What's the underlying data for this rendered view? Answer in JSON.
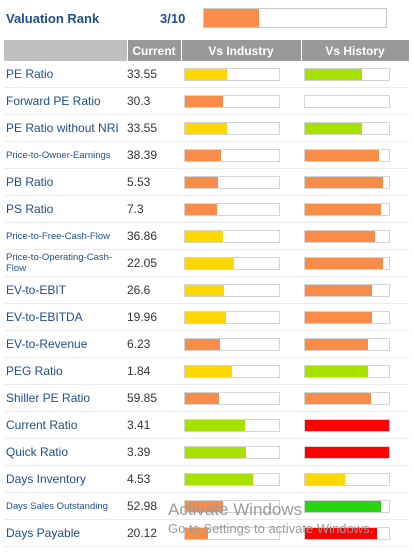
{
  "rank": {
    "label": "Valuation Rank",
    "score": "3/10",
    "fraction": 0.3,
    "color": "#fa8c4a"
  },
  "table": {
    "headers": [
      "",
      "Current",
      "Vs Industry",
      "Vs History"
    ],
    "rows": [
      {
        "metric": "PE Ratio",
        "value": "33.55",
        "industry": {
          "level": 0.45,
          "color": "#ffd700"
        },
        "history": {
          "level": 0.68,
          "color": "#a6e100"
        }
      },
      {
        "metric": "Forward PE Ratio",
        "value": "30.3",
        "industry": {
          "level": 0.4,
          "color": "#fa8c4a"
        },
        "history": {
          "level": 0,
          "color": "#ffffff"
        }
      },
      {
        "metric": "PE Ratio without NRI",
        "value": "33.55",
        "industry": {
          "level": 0.45,
          "color": "#ffd700"
        },
        "history": {
          "level": 0.68,
          "color": "#a6e100"
        }
      },
      {
        "metric": "Price-to-Owner-Earnings",
        "value": "38.39",
        "industry": {
          "level": 0.38,
          "color": "#fa8c4a"
        },
        "history": {
          "level": 0.88,
          "color": "#fa8c4a"
        }
      },
      {
        "metric": "PB Ratio",
        "value": "5.53",
        "industry": {
          "level": 0.35,
          "color": "#fa8c4a"
        },
        "history": {
          "level": 0.93,
          "color": "#fa8c4a"
        }
      },
      {
        "metric": "PS Ratio",
        "value": "7.3",
        "industry": {
          "level": 0.34,
          "color": "#fa8c4a"
        },
        "history": {
          "level": 0.9,
          "color": "#fa8c4a"
        }
      },
      {
        "metric": "Price-to-Free-Cash-Flow",
        "value": "36.86",
        "industry": {
          "level": 0.4,
          "color": "#ffd700"
        },
        "history": {
          "level": 0.83,
          "color": "#fa8c4a"
        }
      },
      {
        "metric": "Price-to-Operating-Cash-Flow",
        "value": "22.05",
        "industry": {
          "level": 0.52,
          "color": "#ffd700"
        },
        "history": {
          "level": 0.93,
          "color": "#fa8c4a"
        }
      },
      {
        "metric": "EV-to-EBIT",
        "value": "26.6",
        "industry": {
          "level": 0.42,
          "color": "#ffd700"
        },
        "history": {
          "level": 0.8,
          "color": "#fa8c4a"
        }
      },
      {
        "metric": "EV-to-EBITDA",
        "value": "19.96",
        "industry": {
          "level": 0.44,
          "color": "#ffd700"
        },
        "history": {
          "level": 0.8,
          "color": "#fa8c4a"
        }
      },
      {
        "metric": "EV-to-Revenue",
        "value": "6.23",
        "industry": {
          "level": 0.37,
          "color": "#fa8c4a"
        },
        "history": {
          "level": 0.75,
          "color": "#fa8c4a"
        }
      },
      {
        "metric": "PEG Ratio",
        "value": "1.84",
        "industry": {
          "level": 0.5,
          "color": "#ffd700"
        },
        "history": {
          "level": 0.75,
          "color": "#a6e100"
        }
      },
      {
        "metric": "Shiller PE Ratio",
        "value": "59.85",
        "industry": {
          "level": 0.36,
          "color": "#fa8c4a"
        },
        "history": {
          "level": 0.79,
          "color": "#fa8c4a"
        }
      },
      {
        "metric": "Current Ratio",
        "value": "3.41",
        "industry": {
          "level": 0.64,
          "color": "#a6e100"
        },
        "history": {
          "level": 1.0,
          "color": "#ff0000"
        }
      },
      {
        "metric": "Quick Ratio",
        "value": "3.39",
        "industry": {
          "level": 0.65,
          "color": "#a6e100"
        },
        "history": {
          "level": 1.0,
          "color": "#ff0000"
        }
      },
      {
        "metric": "Days Inventory",
        "value": "4.53",
        "industry": {
          "level": 0.72,
          "color": "#a6e100"
        },
        "history": {
          "level": 0.48,
          "color": "#ffd700"
        }
      },
      {
        "metric": "Days Sales Outstanding",
        "value": "52.98",
        "industry": {
          "level": 0.4,
          "color": "#fa8c4a"
        },
        "history": {
          "level": 0.9,
          "color": "#26d60f"
        }
      },
      {
        "metric": "Days Payable",
        "value": "20.12",
        "industry": {
          "level": 0.24,
          "color": "#fa8c4a"
        },
        "history": {
          "level": 0.86,
          "color": "#ff0000"
        }
      }
    ],
    "small_labels": [
      "Price-to-Owner-Earnings",
      "Price-to-Free-Cash-Flow",
      "Price-to-Operating-Cash-Flow",
      "Days Sales Outstanding"
    ]
  },
  "watermark": {
    "line1": "Activate Windows",
    "line2": "Go to Settings to activate Windows."
  }
}
